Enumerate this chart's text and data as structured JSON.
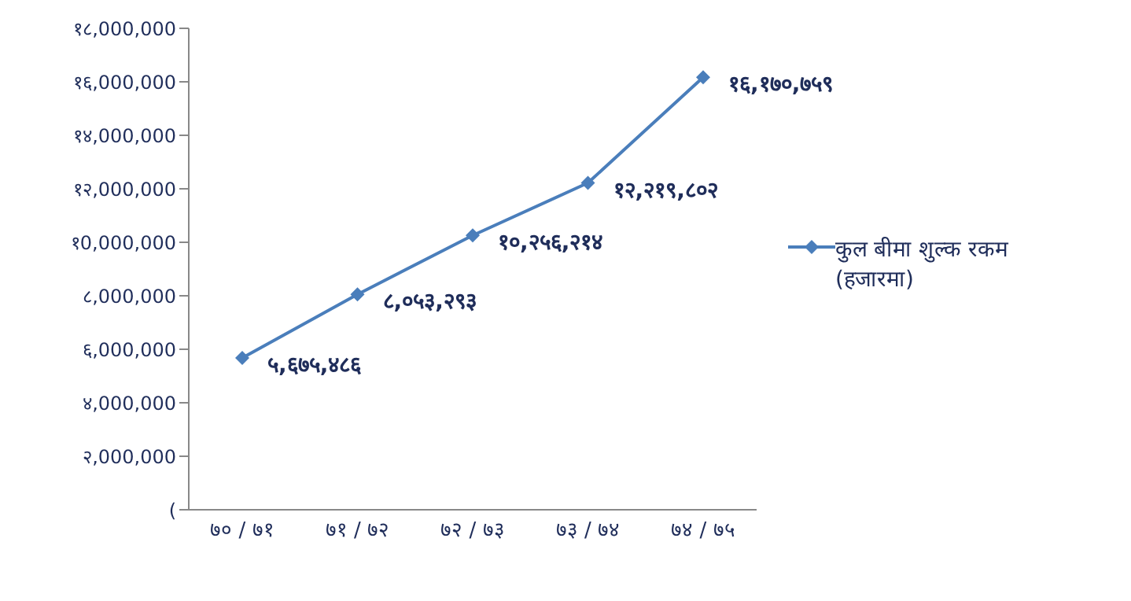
{
  "chart_data": {
    "type": "line",
    "categories": [
      "७० / ७१",
      "७१ / ७२",
      "७२ / ७३",
      "७३ / ७४",
      "७४ / ७५"
    ],
    "series": [
      {
        "name": "कुल बीमा शुल्क रकम (हजारमा)",
        "color": "#4a7ebb",
        "values": [
          5675486,
          8053293,
          10256214,
          12219802,
          16170759
        ],
        "value_labels": [
          "५,६७५,४८६",
          "८,०५३,२९३",
          "१०,२५६,२१४",
          "१२,२१९,८०२",
          "१६,१७०,७५९"
        ]
      }
    ],
    "ylim": [
      0,
      18000000
    ],
    "yticks": [
      {
        "value": 0,
        "label": "("
      },
      {
        "value": 2000000,
        "label": "२,000,000"
      },
      {
        "value": 4000000,
        "label": "४,000,000"
      },
      {
        "value": 6000000,
        "label": "६,000,000"
      },
      {
        "value": 8000000,
        "label": "८,000,000"
      },
      {
        "value": 10000000,
        "label": "१0,000,000"
      },
      {
        "value": 12000000,
        "label": "१२,000,000"
      },
      {
        "value": 14000000,
        "label": "१४,000,000"
      },
      {
        "value": 16000000,
        "label": "१६,000,000"
      },
      {
        "value": 18000000,
        "label": "१८,000,000"
      }
    ],
    "grid": false,
    "legend": "right",
    "marker": "diamond",
    "line_style": "solid"
  }
}
